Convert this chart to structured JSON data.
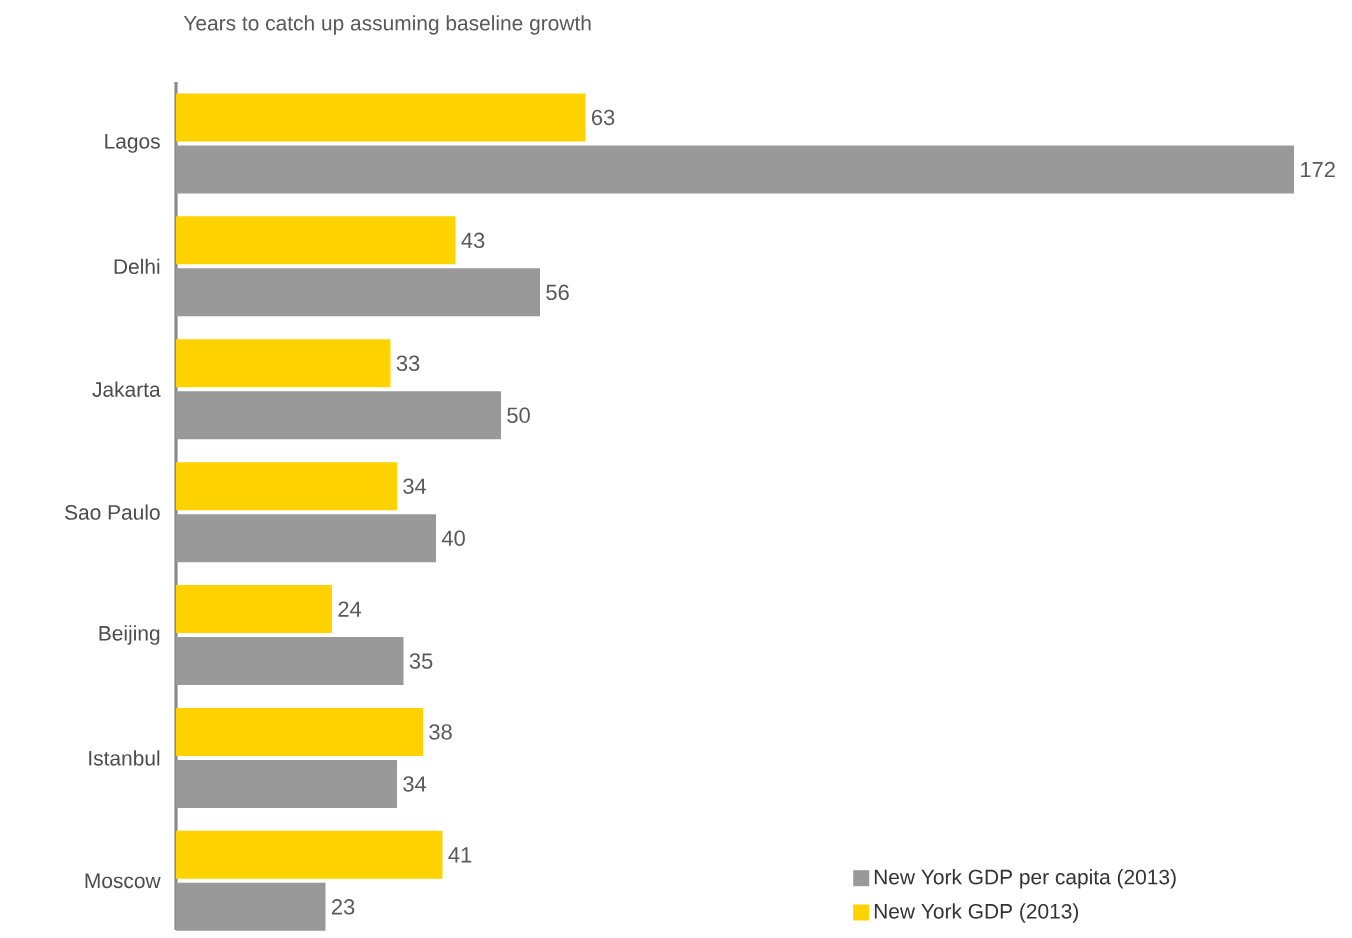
{
  "chart_data": {
    "type": "bar",
    "orientation": "horizontal",
    "title": "Years to catch up assuming baseline growth",
    "categories": [
      "Lagos",
      "Delhi",
      "Jakarta",
      "Sao Paulo",
      "Beijing",
      "Istanbul",
      "Moscow"
    ],
    "series": [
      {
        "name": "New York GDP per capita (2013)",
        "color": "#999999",
        "values": [
          172,
          56,
          50,
          40,
          35,
          34,
          23
        ]
      },
      {
        "name": "New York GDP (2013)",
        "color": "#ffd200",
        "values": [
          63,
          43,
          33,
          34,
          24,
          38,
          41
        ]
      }
    ],
    "data_labels": true,
    "legend": "bottom right"
  }
}
